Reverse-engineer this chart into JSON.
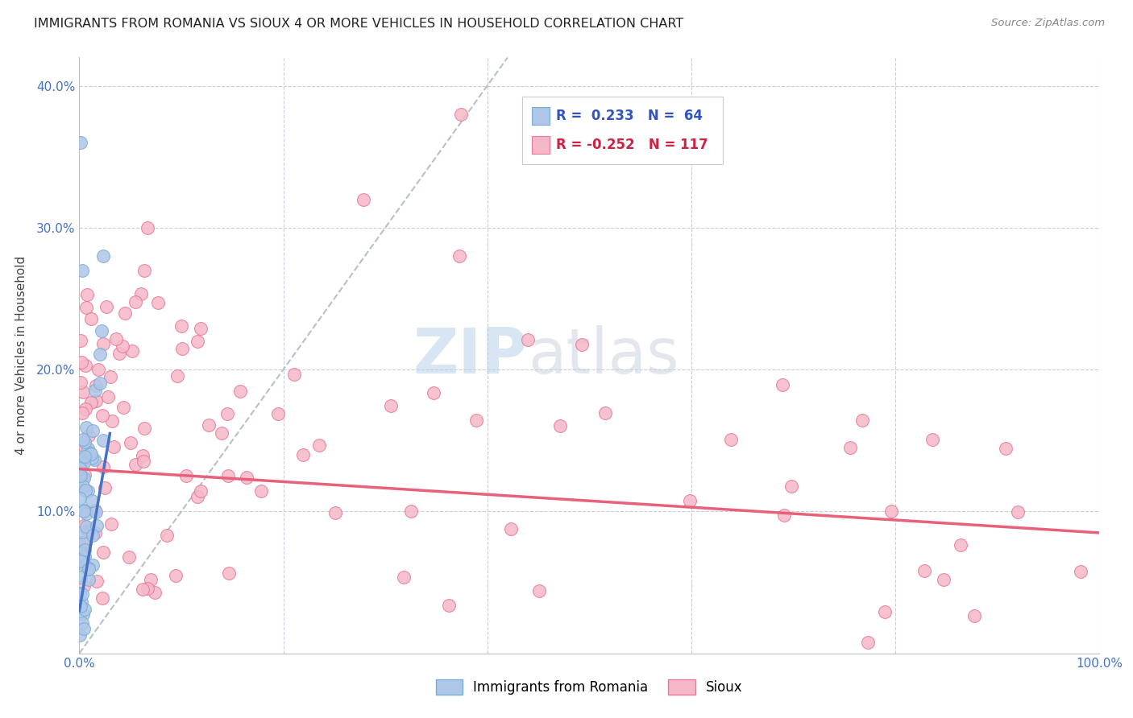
{
  "title": "IMMIGRANTS FROM ROMANIA VS SIOUX 4 OR MORE VEHICLES IN HOUSEHOLD CORRELATION CHART",
  "source": "Source: ZipAtlas.com",
  "ylabel": "4 or more Vehicles in Household",
  "romania_R": 0.233,
  "romania_N": 64,
  "sioux_R": -0.252,
  "sioux_N": 117,
  "romania_color": "#aec6e8",
  "sioux_color": "#f5b8c8",
  "romania_edge": "#7aadd4",
  "sioux_edge": "#e87898",
  "trendline_romania_color": "#4472c4",
  "trendline_sioux_color": "#e8607a",
  "diagonal_color": "#b0b8c8",
  "background_color": "#ffffff",
  "watermark_zip": "ZIP",
  "watermark_atlas": "atlas",
  "legend_romania_label": "Immigrants from Romania",
  "legend_sioux_label": "Sioux",
  "xlim": [
    0.0,
    1.0
  ],
  "ylim": [
    0.0,
    0.42
  ],
  "romania_trend_x0": 0.0,
  "romania_trend_y0": 0.03,
  "romania_trend_x1": 0.03,
  "romania_trend_y1": 0.155,
  "sioux_trend_x0": 0.0,
  "sioux_trend_y0": 0.13,
  "sioux_trend_x1": 1.0,
  "sioux_trend_y1": 0.085
}
